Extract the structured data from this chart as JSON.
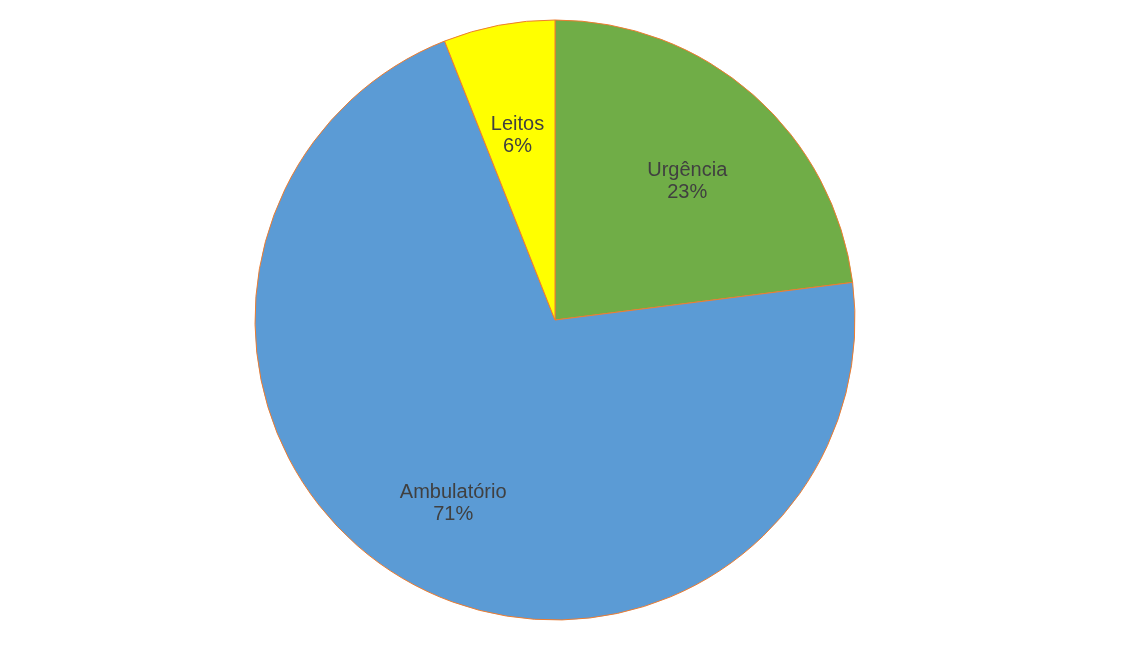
{
  "chart_data": {
    "type": "pie",
    "categories": [
      "Urgência",
      "Ambulatório",
      "Leitos"
    ],
    "values": [
      23,
      71,
      6
    ],
    "value_labels": [
      "23%",
      "71%",
      "6%"
    ],
    "colors": [
      "#70ad47",
      "#5b9bd5",
      "#ffff00"
    ],
    "legend": false
  }
}
